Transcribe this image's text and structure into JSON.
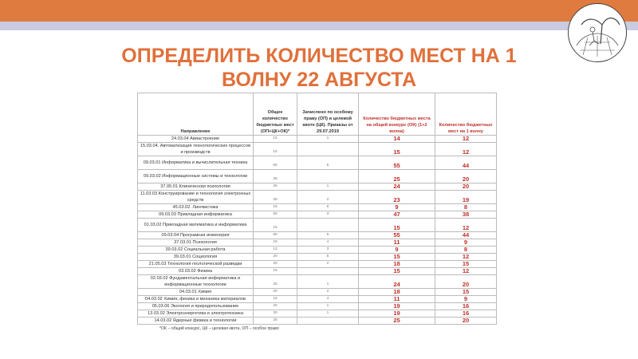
{
  "title_lines": [
    "ОПРЕДЕЛИТЬ КОЛИЧЕСТВО МЕСТ НА 1",
    "ВОЛНУ 22 АВГУСТА"
  ],
  "colors": {
    "accent": "#e07b3f",
    "title": "#e0703a",
    "highlight": "#c0302a"
  },
  "table": {
    "headers": [
      "Направление",
      "Общее количество бюджетных мест (ОП+ЦК+ОК)*",
      "Зачислено по особому праву (ОП) и целевой квоте (ЦК). Приказы от 29.07.2019",
      "Количество бюджетных места на общий конкурс (ОК) (1+2 волна)",
      "Количество бюджетных мест на 1 волну"
    ],
    "rows": [
      [
        "24.03.04 Авиастроение",
        "15",
        "1",
        "14",
        "12"
      ],
      [
        "15.03.04. Автоматизация технологических процессов и производств",
        "15",
        "",
        "15",
        "12"
      ],
      [
        "09.03.01 Информатика и вычислительная техника",
        "60",
        "5",
        "55",
        "44"
      ],
      [
        "09.03.02 Информационные системы и технологии",
        "25",
        "",
        "25",
        "20"
      ],
      [
        "37.05.01 Клиническая психология",
        "25",
        "1",
        "24",
        "20"
      ],
      [
        "11.03.03 Конструирование и технология электронных средств",
        "25",
        "2",
        "23",
        "19"
      ],
      [
        "45.03.02. Лингвистика",
        "15",
        "6",
        "9",
        "8"
      ],
      [
        "09.03.03 Прикладная информатика",
        "50",
        "3",
        "47",
        "38"
      ],
      [
        "01.03.02 Прикладная математика и информатика",
        "15",
        "",
        "15",
        "12"
      ],
      [
        "09.03.04 Програмная инженерия",
        "60",
        "5",
        "55",
        "44"
      ],
      [
        "37.03.01 Психология",
        "15",
        "4",
        "11",
        "9"
      ],
      [
        "39.03.02 Социальная работа",
        "12",
        "3",
        "9",
        "8"
      ],
      [
        "39.03.01 Социология",
        "20",
        "5",
        "15",
        "12"
      ],
      [
        "21.05.03 Технология геологической разведки",
        "20",
        "2",
        "18",
        "15"
      ],
      [
        "03.03.02 Физика",
        "15",
        "",
        "15",
        "12"
      ],
      [
        "02.03.02 Фундаментальная информатика и информационные технологии",
        "25",
        "1",
        "24",
        "20"
      ],
      [
        "04.03.01 Химия",
        "20",
        "2",
        "18",
        "15"
      ],
      [
        "04.03.02 Химия, физика и механика материалов",
        "15",
        "4",
        "11",
        "9"
      ],
      [
        "05.03.06 Экология и природопользование",
        "20",
        "1",
        "19",
        "16"
      ],
      [
        "13.03.02 Электроэнергетика и электротехника",
        "20",
        "1",
        "19",
        "16"
      ],
      [
        "14.03.02 Ядерные физика и технологии",
        "25",
        "",
        "25",
        "20"
      ]
    ],
    "double_rows": [
      1,
      2,
      3,
      5,
      8,
      15
    ]
  },
  "footnote": "*ОК – общий конкурс, ЦК – целевая квота, ОП – особое право"
}
